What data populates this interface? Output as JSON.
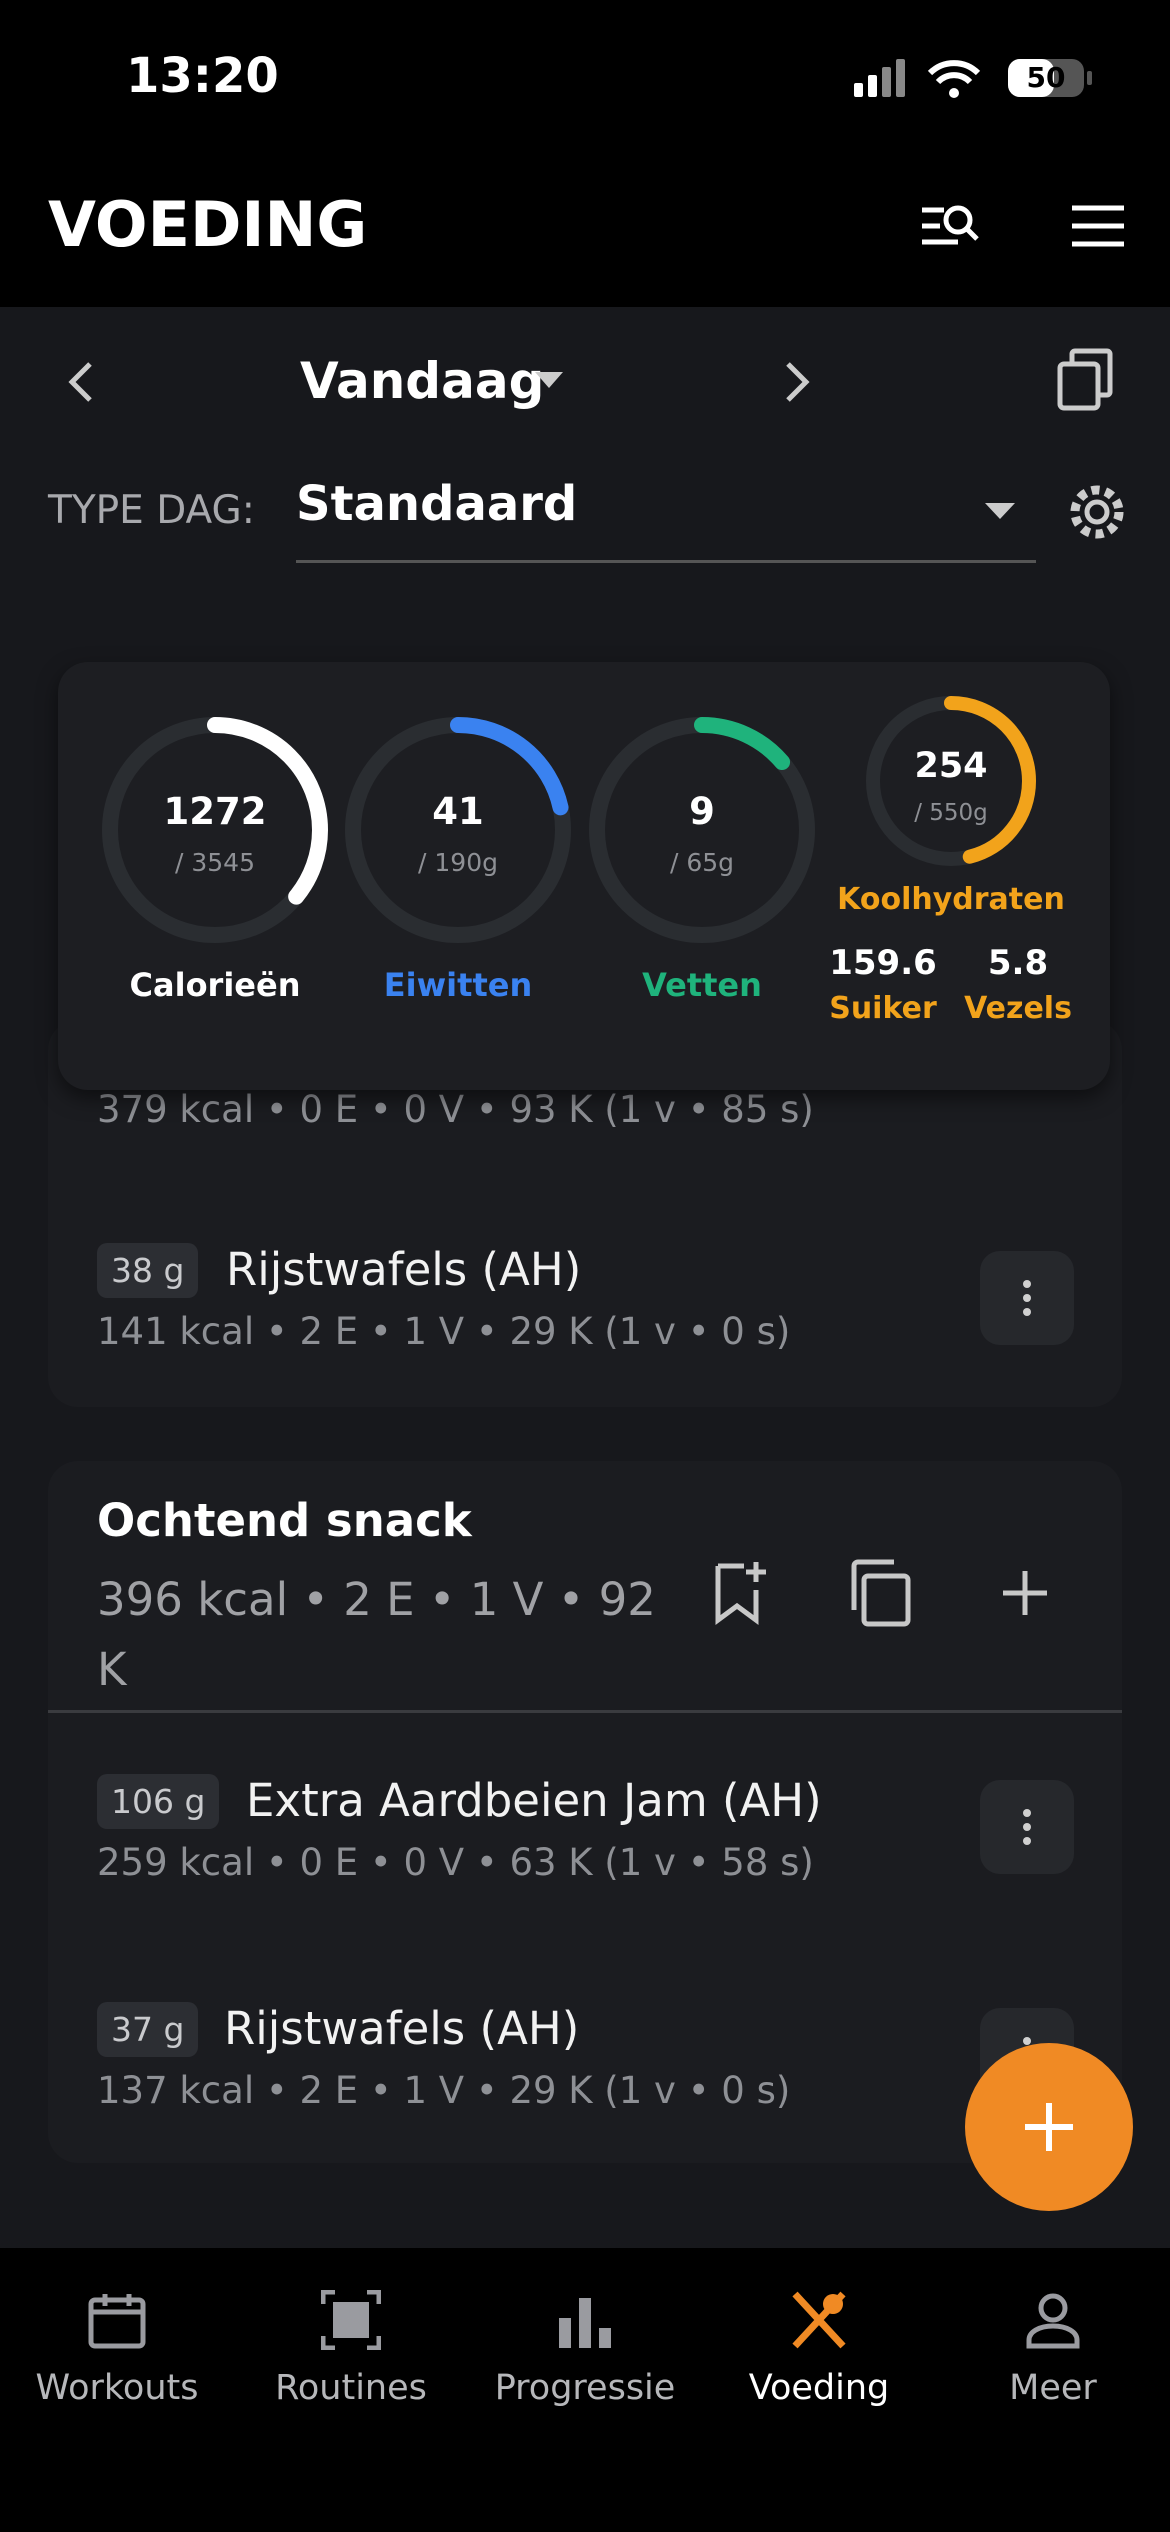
{
  "status": {
    "time": "13:20",
    "battery": "50"
  },
  "header": {
    "title": "VOEDING"
  },
  "date_nav": {
    "label": "Vandaag"
  },
  "day_type": {
    "label": "TYPE DAG:",
    "value": "Standaard"
  },
  "summary": {
    "rings": [
      {
        "value": 1272,
        "goal": "/ 3545",
        "label": "Calorieën"
      },
      {
        "value": 41,
        "goal": "/ 190g",
        "label": "Eiwitten"
      },
      {
        "value": 9,
        "goal": "/ 65g",
        "label": "Vetten"
      }
    ],
    "carbs": {
      "value": 254,
      "goal": "/ 550g",
      "label": "Koolhydraten"
    },
    "sugar": {
      "value": 159.6,
      "label": "Suiker"
    },
    "fiber": {
      "value": 5.8,
      "label": "Vezels"
    }
  },
  "meals": [
    {
      "items": [
        {
          "partial": "379 kcal • 0 E • 0 V • 93 K (1 v • 85 s)"
        },
        {
          "amount": "38 g",
          "name": "Rijstwafels (AH)",
          "detail": "141 kcal • 2 E • 1 V • 29 K (1 v • 0 s)"
        }
      ]
    },
    {
      "title": "Ochtend snack",
      "summary": "396 kcal • 2 E • 1 V • 92 K",
      "items": [
        {
          "amount": "106 g",
          "name": "Extra Aardbeien Jam (AH)",
          "detail": "259 kcal • 0 E • 0 V • 63 K (1 v • 58 s)"
        },
        {
          "amount": "37 g",
          "name": "Rijstwafels (AH)",
          "detail": "137 kcal • 2 E • 1 V • 29 K (1 v • 0 s)"
        }
      ]
    }
  ],
  "tabs": [
    "Workouts",
    "Routines",
    "Progressie",
    "Voeding",
    "Meer"
  ]
}
